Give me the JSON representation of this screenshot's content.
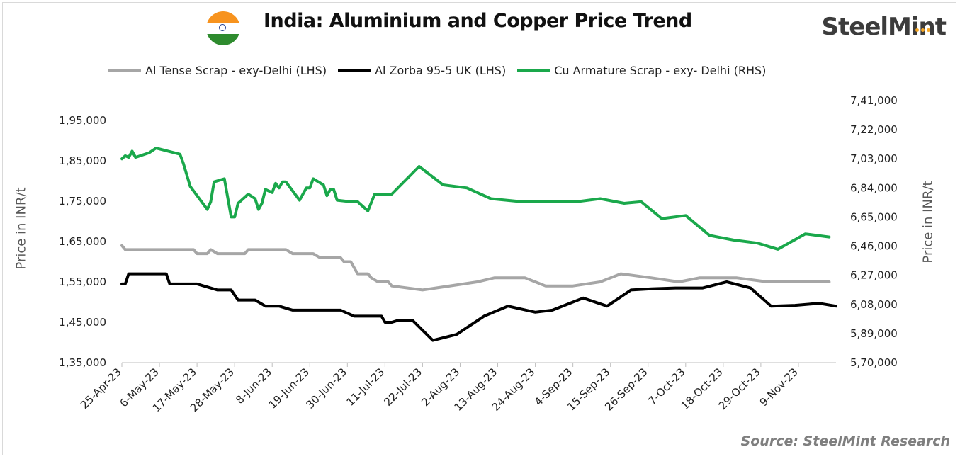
{
  "header": {
    "title": "India: Aluminium and Copper Price Trend",
    "brand": "SteelMint",
    "source": "Source: SteelMint Research"
  },
  "chart_data": {
    "type": "line",
    "title": "India: Aluminium and Copper Price Trend",
    "ylabel_left": "Price in INR/t",
    "ylabel_right": "Price in INR/t",
    "ylim_left": [
      135000,
      195000
    ],
    "ylim_right": [
      570000,
      741000
    ],
    "yticks_left": [
      "1,35,000",
      "1,45,000",
      "1,55,000",
      "1,65,000",
      "1,75,000",
      "1,85,000",
      "1,95,000"
    ],
    "yticks_right": [
      "5,70,000",
      "5,89,000",
      "6,08,000",
      "6,27,000",
      "6,46,000",
      "6,65,000",
      "6,84,000",
      "7,03,000",
      "7,22,000",
      "7,41,000"
    ],
    "x_tick_labels": [
      "25-Apr-23",
      "6-May-23",
      "17-May-23",
      "28-May-23",
      "8-Jun-23",
      "19-Jun-23",
      "30-Jun-23",
      "11-Jul-23",
      "22-Jul-23",
      "2-Aug-23",
      "13-Aug-23",
      "24-Aug-23",
      "4-Sep-23",
      "15-Sep-23",
      "26-Sep-23",
      "7-Oct-23",
      "18-Oct-23",
      "29-Oct-23",
      "9-Nov-23"
    ],
    "legend_position": "top",
    "grid": false,
    "series": [
      {
        "name": "Al Tense Scrap - exy-Delhi (LHS)",
        "axis": "left",
        "color": "#a6a6a6",
        "points": [
          [
            "2023-04-25",
            164000
          ],
          [
            "2023-04-26",
            163000
          ],
          [
            "2023-05-01",
            163000
          ],
          [
            "2023-05-10",
            163000
          ],
          [
            "2023-05-16",
            163000
          ],
          [
            "2023-05-17",
            162000
          ],
          [
            "2023-05-20",
            162000
          ],
          [
            "2023-05-21",
            163000
          ],
          [
            "2023-05-23",
            162000
          ],
          [
            "2023-05-31",
            162000
          ],
          [
            "2023-06-01",
            163000
          ],
          [
            "2023-06-12",
            163000
          ],
          [
            "2023-06-14",
            162000
          ],
          [
            "2023-06-20",
            162000
          ],
          [
            "2023-06-22",
            161000
          ],
          [
            "2023-06-28",
            161000
          ],
          [
            "2023-06-29",
            160000
          ],
          [
            "2023-07-01",
            160000
          ],
          [
            "2023-07-03",
            157000
          ],
          [
            "2023-07-06",
            157000
          ],
          [
            "2023-07-07",
            156000
          ],
          [
            "2023-07-09",
            155000
          ],
          [
            "2023-07-12",
            155000
          ],
          [
            "2023-07-13",
            154000
          ],
          [
            "2023-07-22",
            153000
          ],
          [
            "2023-08-07",
            155000
          ],
          [
            "2023-08-12",
            156000
          ],
          [
            "2023-08-21",
            156000
          ],
          [
            "2023-08-27",
            154000
          ],
          [
            "2023-09-04",
            154000
          ],
          [
            "2023-09-12",
            155000
          ],
          [
            "2023-09-18",
            157000
          ],
          [
            "2023-09-27",
            156000
          ],
          [
            "2023-10-05",
            155000
          ],
          [
            "2023-10-11",
            156000
          ],
          [
            "2023-10-22",
            156000
          ],
          [
            "2023-10-31",
            155000
          ],
          [
            "2023-11-18",
            155000
          ]
        ]
      },
      {
        "name": "Al Zorba 95-5 UK (LHS)",
        "axis": "left",
        "color": "#000000",
        "points": [
          [
            "2023-04-25",
            154500
          ],
          [
            "2023-04-26",
            154500
          ],
          [
            "2023-04-27",
            157000
          ],
          [
            "2023-05-04",
            157000
          ],
          [
            "2023-05-08",
            157000
          ],
          [
            "2023-05-09",
            154500
          ],
          [
            "2023-05-17",
            154500
          ],
          [
            "2023-05-23",
            153000
          ],
          [
            "2023-05-27",
            153000
          ],
          [
            "2023-05-29",
            150500
          ],
          [
            "2023-06-03",
            150500
          ],
          [
            "2023-06-06",
            149000
          ],
          [
            "2023-06-10",
            149000
          ],
          [
            "2023-06-14",
            148000
          ],
          [
            "2023-06-28",
            148000
          ],
          [
            "2023-07-02",
            146500
          ],
          [
            "2023-07-10",
            146500
          ],
          [
            "2023-07-11",
            145000
          ],
          [
            "2023-07-13",
            145000
          ],
          [
            "2023-07-15",
            145500
          ],
          [
            "2023-07-19",
            145500
          ],
          [
            "2023-07-25",
            140500
          ],
          [
            "2023-08-01",
            142000
          ],
          [
            "2023-08-09",
            146500
          ],
          [
            "2023-08-16",
            149000
          ],
          [
            "2023-08-24",
            147500
          ],
          [
            "2023-08-29",
            148000
          ],
          [
            "2023-09-04",
            150000
          ],
          [
            "2023-09-07",
            151000
          ],
          [
            "2023-09-14",
            149000
          ],
          [
            "2023-09-21",
            153000
          ],
          [
            "2023-09-27",
            153300
          ],
          [
            "2023-10-04",
            153500
          ],
          [
            "2023-10-12",
            153500
          ],
          [
            "2023-10-19",
            155000
          ],
          [
            "2023-10-26",
            153500
          ],
          [
            "2023-11-01",
            149000
          ],
          [
            "2023-11-08",
            149200
          ],
          [
            "2023-11-15",
            149700
          ],
          [
            "2023-11-20",
            149000
          ]
        ]
      },
      {
        "name": "Cu Armature Scrap - exy- Delhi (RHS)",
        "axis": "right",
        "color": "#1aa84b",
        "points": [
          [
            "2023-04-25",
            703000
          ],
          [
            "2023-04-26",
            705000
          ],
          [
            "2023-04-27",
            704000
          ],
          [
            "2023-04-28",
            708000
          ],
          [
            "2023-04-29",
            704000
          ],
          [
            "2023-05-03",
            707000
          ],
          [
            "2023-05-05",
            710000
          ],
          [
            "2023-05-12",
            706000
          ],
          [
            "2023-05-13",
            700000
          ],
          [
            "2023-05-15",
            685000
          ],
          [
            "2023-05-18",
            676000
          ],
          [
            "2023-05-20",
            670000
          ],
          [
            "2023-05-21",
            675000
          ],
          [
            "2023-05-22",
            688000
          ],
          [
            "2023-05-25",
            690000
          ],
          [
            "2023-05-27",
            665000
          ],
          [
            "2023-05-28",
            665000
          ],
          [
            "2023-05-29",
            674000
          ],
          [
            "2023-06-01",
            680000
          ],
          [
            "2023-06-03",
            677000
          ],
          [
            "2023-06-04",
            670000
          ],
          [
            "2023-06-05",
            674000
          ],
          [
            "2023-06-06",
            683000
          ],
          [
            "2023-06-08",
            681000
          ],
          [
            "2023-06-09",
            687000
          ],
          [
            "2023-06-10",
            684000
          ],
          [
            "2023-06-11",
            688000
          ],
          [
            "2023-06-12",
            688000
          ],
          [
            "2023-06-16",
            676000
          ],
          [
            "2023-06-18",
            684000
          ],
          [
            "2023-06-19",
            684000
          ],
          [
            "2023-06-20",
            690000
          ],
          [
            "2023-06-23",
            686000
          ],
          [
            "2023-06-24",
            679000
          ],
          [
            "2023-06-25",
            683000
          ],
          [
            "2023-06-26",
            683000
          ],
          [
            "2023-06-27",
            676000
          ],
          [
            "2023-07-01",
            675000
          ],
          [
            "2023-07-03",
            675000
          ],
          [
            "2023-07-06",
            669000
          ],
          [
            "2023-07-08",
            680000
          ],
          [
            "2023-07-13",
            680000
          ],
          [
            "2023-07-21",
            698000
          ],
          [
            "2023-07-28",
            686000
          ],
          [
            "2023-08-04",
            684000
          ],
          [
            "2023-08-11",
            677000
          ],
          [
            "2023-08-20",
            675000
          ],
          [
            "2023-09-05",
            675000
          ],
          [
            "2023-09-12",
            677000
          ],
          [
            "2023-09-19",
            674000
          ],
          [
            "2023-09-24",
            675000
          ],
          [
            "2023-09-30",
            664000
          ],
          [
            "2023-10-07",
            666000
          ],
          [
            "2023-10-14",
            653000
          ],
          [
            "2023-10-21",
            650000
          ],
          [
            "2023-10-28",
            648000
          ],
          [
            "2023-11-03",
            644000
          ],
          [
            "2023-11-11",
            654000
          ],
          [
            "2023-11-18",
            652000
          ]
        ]
      }
    ]
  }
}
